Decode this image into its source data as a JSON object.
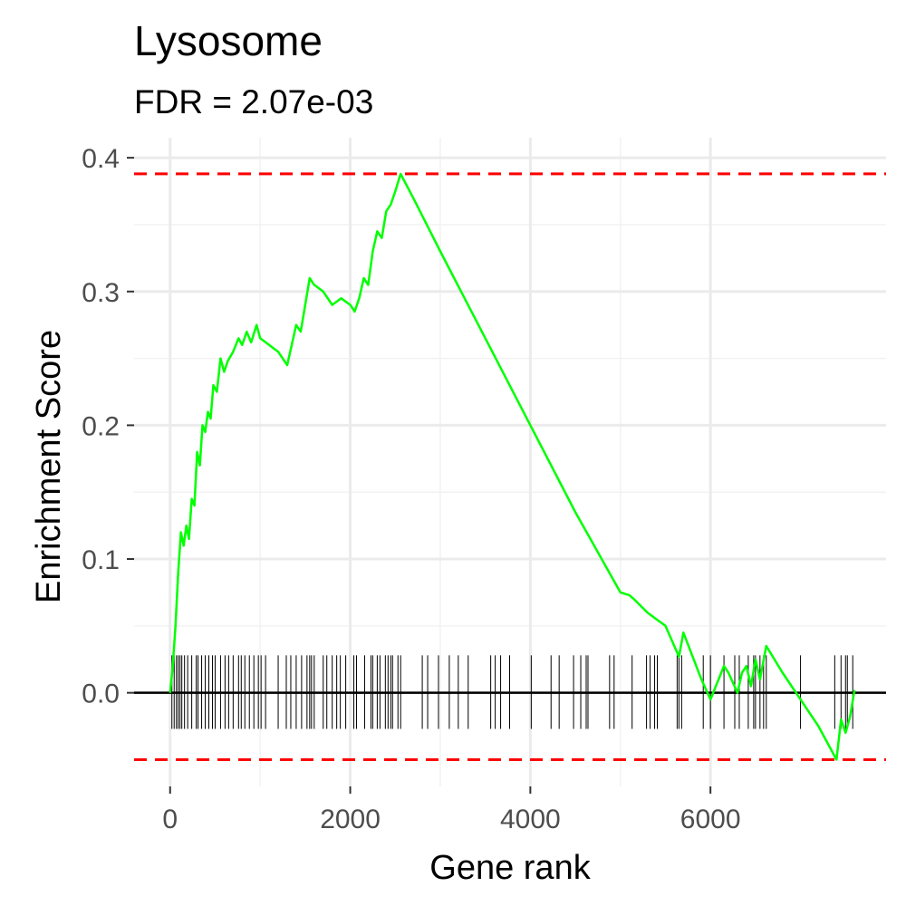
{
  "chart_data": {
    "type": "line",
    "title": "Lysosome",
    "subtitle": "FDR = 2.07e-03",
    "xlabel": "Gene rank",
    "ylabel": "Enrichment Score",
    "xlim": [
      -400,
      7950
    ],
    "ylim": [
      -0.07,
      0.415
    ],
    "x_ticks": [
      0,
      2000,
      4000,
      6000
    ],
    "x_tick_labels": [
      "0",
      "2000",
      "4000",
      "6000"
    ],
    "y_ticks": [
      0.0,
      0.1,
      0.2,
      0.3,
      0.4
    ],
    "y_tick_labels": [
      "0.0",
      "0.1",
      "0.2",
      "0.3",
      "0.4"
    ],
    "grid": true,
    "series": [
      {
        "color": "#00ff00",
        "x": [
          0,
          30,
          60,
          90,
          120,
          150,
          180,
          210,
          240,
          270,
          300,
          330,
          360,
          390,
          420,
          450,
          480,
          520,
          560,
          600,
          640,
          700,
          760,
          800,
          850,
          900,
          960,
          1000,
          1100,
          1200,
          1300,
          1350,
          1400,
          1450,
          1500,
          1550,
          1600,
          1700,
          1800,
          1900,
          2000,
          2050,
          2100,
          2150,
          2200,
          2250,
          2300,
          2350,
          2400,
          2450,
          2500,
          2560,
          2700,
          3000,
          3500,
          4000,
          4500,
          5000,
          5100,
          5150,
          5300,
          5400,
          5500,
          5650,
          5700,
          5900,
          6000,
          6150,
          6200,
          6300,
          6350,
          6400,
          6450,
          6500,
          6550,
          6620,
          6800,
          7000,
          7200,
          7400,
          7450,
          7500,
          7550,
          7600
        ],
        "values": [
          0.0,
          0.02,
          0.05,
          0.09,
          0.12,
          0.11,
          0.125,
          0.115,
          0.145,
          0.14,
          0.18,
          0.17,
          0.2,
          0.195,
          0.21,
          0.205,
          0.23,
          0.225,
          0.25,
          0.24,
          0.248,
          0.255,
          0.265,
          0.26,
          0.27,
          0.262,
          0.275,
          0.265,
          0.26,
          0.255,
          0.245,
          0.26,
          0.275,
          0.27,
          0.29,
          0.31,
          0.305,
          0.3,
          0.29,
          0.295,
          0.29,
          0.285,
          0.295,
          0.31,
          0.305,
          0.33,
          0.345,
          0.34,
          0.36,
          0.365,
          0.375,
          0.388,
          0.37,
          0.33,
          0.265,
          0.2,
          0.135,
          0.075,
          0.073,
          0.07,
          0.06,
          0.055,
          0.05,
          0.027,
          0.045,
          0.01,
          -0.005,
          0.02,
          0.015,
          0.0,
          0.015,
          0.02,
          0.005,
          0.025,
          0.01,
          0.035,
          0.015,
          -0.005,
          -0.025,
          -0.05,
          -0.02,
          -0.03,
          -0.018,
          0.002
        ]
      }
    ],
    "hline": 0.0,
    "dashed_lines": {
      "color": "#ff0000",
      "values": [
        0.388,
        -0.05
      ]
    },
    "gene_hits": [
      20,
      45,
      70,
      90,
      110,
      130,
      160,
      195,
      240,
      290,
      310,
      350,
      390,
      430,
      470,
      500,
      560,
      610,
      650,
      700,
      760,
      790,
      830,
      880,
      930,
      980,
      1010,
      1060,
      1200,
      1290,
      1340,
      1400,
      1460,
      1520,
      1550,
      1570,
      1600,
      1700,
      1740,
      1800,
      1850,
      1890,
      1950,
      2040,
      2070,
      2160,
      2230,
      2250,
      2300,
      2330,
      2390,
      2420,
      2450,
      2470,
      2530,
      2560,
      2800,
      2860,
      2980,
      3100,
      3200,
      3310,
      3560,
      3610,
      3670,
      3770,
      4010,
      4230,
      4320,
      4480,
      4560,
      4620,
      4640,
      4880,
      4930,
      5130,
      5290,
      5330,
      5380,
      5410,
      5630,
      5650,
      5680,
      5920,
      6000,
      6150,
      6270,
      6320,
      6420,
      6480,
      6500,
      6550,
      6590,
      6620,
      7000,
      7380,
      7450,
      7500,
      7520,
      7580
    ]
  }
}
